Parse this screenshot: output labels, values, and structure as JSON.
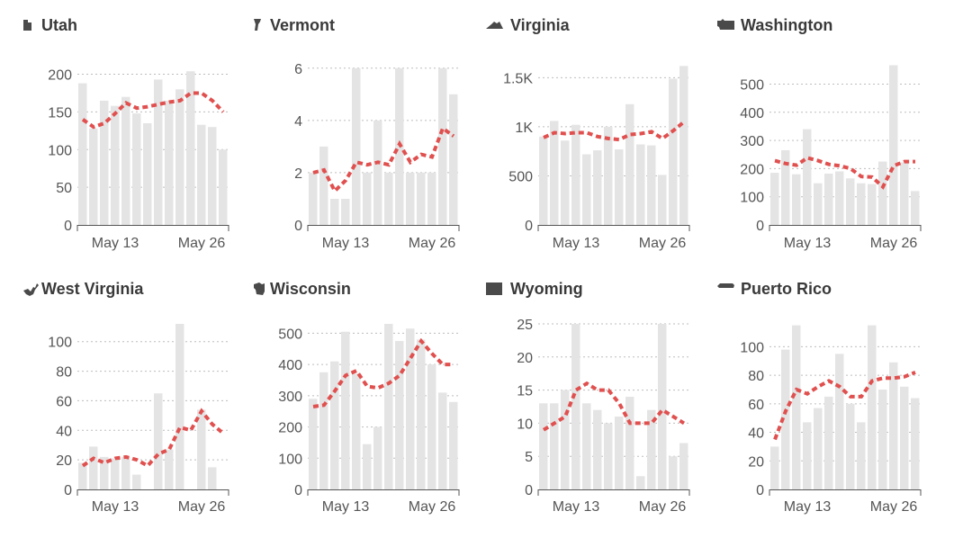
{
  "colors": {
    "bar": "#e4e4e4",
    "average_line": "#e0504f",
    "text": "#3a3a3a"
  },
  "chart_data": [
    {
      "type": "bar",
      "title": "Utah",
      "icon": "utah-state-icon",
      "x_ticks": [
        "May 13",
        "May 26"
      ],
      "ylim": [
        0,
        215
      ],
      "y_ticks": [
        0,
        50,
        100,
        150,
        200
      ],
      "values": [
        188,
        128,
        165,
        158,
        170,
        148,
        135,
        193,
        165,
        180,
        204,
        133,
        130,
        100
      ],
      "line": [
        140,
        130,
        135,
        148,
        162,
        155,
        157,
        160,
        163,
        165,
        175,
        175,
        165,
        150
      ]
    },
    {
      "type": "bar",
      "title": "Vermont",
      "icon": "vermont-state-icon",
      "x_ticks": [
        "May 13",
        "May 26"
      ],
      "ylim": [
        0,
        6.2
      ],
      "y_ticks": [
        0,
        2,
        4,
        6
      ],
      "values": [
        2,
        3,
        1,
        1,
        6,
        2,
        4,
        2,
        6,
        2,
        2,
        2,
        6,
        5
      ],
      "line": [
        2,
        2.1,
        1.3,
        1.7,
        2.4,
        2.3,
        2.4,
        2.3,
        3.1,
        2.4,
        2.7,
        2.6,
        3.7,
        3.4
      ]
    },
    {
      "type": "bar",
      "title": "Virginia",
      "icon": "virginia-state-icon",
      "x_ticks": [
        "May 13",
        "May 26"
      ],
      "ylim": [
        0,
        1650
      ],
      "y_ticks": [
        0,
        500,
        1000,
        1500
      ],
      "y_tick_labels": [
        "0",
        "500",
        "1K",
        "1.5K"
      ],
      "values": [
        900,
        1060,
        860,
        1020,
        720,
        760,
        1000,
        770,
        1230,
        820,
        810,
        510,
        1490,
        1620
      ],
      "line": [
        890,
        940,
        930,
        940,
        940,
        900,
        880,
        870,
        920,
        930,
        950,
        880,
        960,
        1050
      ]
    },
    {
      "type": "bar",
      "title": "Washington",
      "icon": "washington-state-icon",
      "x_ticks": [
        "May 13",
        "May 26"
      ],
      "ylim": [
        0,
        575
      ],
      "y_ticks": [
        0,
        100,
        200,
        300,
        400,
        500
      ],
      "values": [
        185,
        265,
        180,
        340,
        148,
        182,
        190,
        165,
        148,
        145,
        225,
        567,
        222,
        120
      ],
      "line": [
        228,
        218,
        212,
        238,
        228,
        215,
        210,
        200,
        172,
        170,
        135,
        210,
        225,
        225
      ]
    },
    {
      "type": "bar",
      "title": "West Virginia",
      "icon": "west-virginia-state-icon",
      "x_ticks": [
        "May 13",
        "May 26"
      ],
      "ylim": [
        0,
        112
      ],
      "y_ticks": [
        0,
        20,
        40,
        60,
        80,
        100
      ],
      "values": [
        18,
        29,
        22,
        21,
        22,
        10,
        0,
        65,
        27,
        112,
        0,
        54,
        15,
        0
      ],
      "line": [
        16,
        21,
        18,
        21,
        22,
        20,
        16,
        24,
        27,
        42,
        40,
        53,
        44,
        38
      ]
    },
    {
      "type": "bar",
      "title": "Wisconsin",
      "icon": "wisconsin-state-icon",
      "x_ticks": [
        "May 13",
        "May 26"
      ],
      "ylim": [
        0,
        530
      ],
      "y_ticks": [
        0,
        100,
        200,
        300,
        400,
        500
      ],
      "values": [
        290,
        375,
        410,
        505,
        370,
        145,
        200,
        530,
        475,
        515,
        480,
        400,
        310,
        280
      ],
      "line": [
        265,
        270,
        315,
        365,
        380,
        330,
        325,
        340,
        365,
        420,
        475,
        435,
        400,
        400
      ]
    },
    {
      "type": "bar",
      "title": "Wyoming",
      "icon": "wyoming-state-icon",
      "x_ticks": [
        "May 13",
        "May 26"
      ],
      "ylim": [
        0,
        25
      ],
      "y_ticks": [
        0,
        5,
        10,
        15,
        20,
        25
      ],
      "values": [
        13,
        13,
        15,
        25,
        13,
        12,
        10,
        11,
        14,
        2,
        12,
        25,
        5,
        7
      ],
      "line": [
        9,
        10,
        11,
        15,
        16,
        15,
        15,
        13,
        10,
        10,
        10,
        12,
        11,
        10
      ]
    },
    {
      "type": "bar",
      "title": "Puerto Rico",
      "icon": "puerto-rico-icon",
      "x_ticks": [
        "May 13",
        "May 26"
      ],
      "ylim": [
        0,
        116
      ],
      "y_ticks": [
        0,
        20,
        40,
        60,
        80,
        100
      ],
      "values": [
        30,
        98,
        115,
        47,
        57,
        65,
        95,
        60,
        47,
        115,
        70,
        89,
        72,
        64
      ],
      "line": [
        35,
        55,
        70,
        67,
        72,
        76,
        72,
        65,
        65,
        76,
        78,
        78,
        79,
        82
      ]
    }
  ]
}
